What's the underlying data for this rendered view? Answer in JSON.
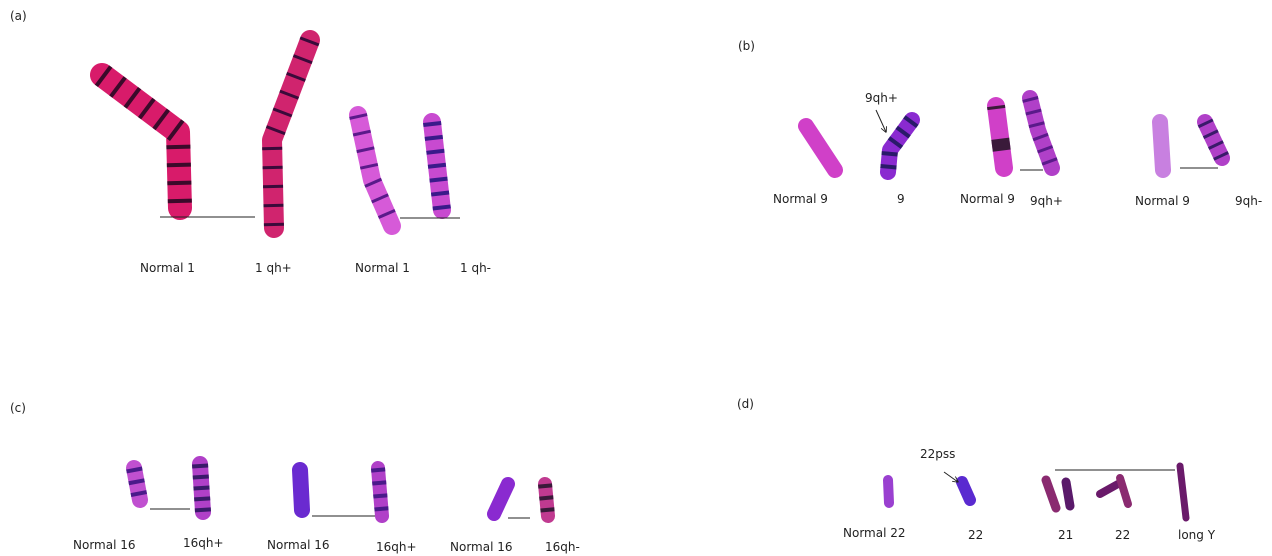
{
  "panels": [
    {
      "label": "(a)",
      "captions": [
        "Normal 1",
        "1 qh+",
        "Normal 1",
        "1 qh-"
      ]
    },
    {
      "label": "(b)",
      "annotations": [
        "9qh+"
      ],
      "captions": [
        "Normal 9",
        "9",
        "Normal 9",
        "9qh+",
        "Normal 9",
        "9qh-"
      ]
    },
    {
      "label": "(c)",
      "captions": [
        "Normal 16",
        "16qh+",
        "Normal 16",
        "16qh+",
        "Normal 16",
        "16qh-"
      ]
    },
    {
      "label": "(d)",
      "annotations": [
        "22pss"
      ],
      "captions": [
        "Normal 22",
        "22",
        "21",
        "22",
        "long Y"
      ]
    }
  ]
}
